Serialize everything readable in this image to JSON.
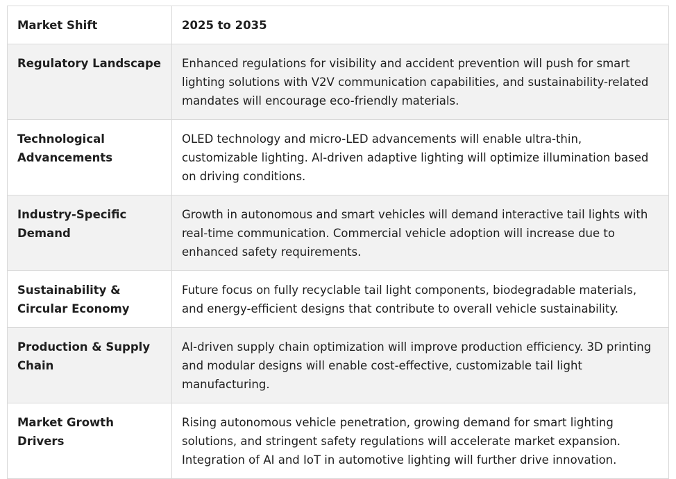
{
  "table": {
    "header": {
      "col1": "Market Shift",
      "col2": "2025 to 2035"
    },
    "rows": [
      {
        "label": "Regulatory Landscape",
        "text": "Enhanced regulations for visibility and accident prevention will push for smart lighting solutions with V2V communication capabilities, and sustainability-related mandates will encourage eco-friendly materials."
      },
      {
        "label": "Technological Advancements",
        "text": "OLED technology and micro-LED advancements will enable ultra-thin, customizable lighting. AI-driven adaptive lighting will optimize illumination based on driving conditions."
      },
      {
        "label": "Industry-Specific Demand",
        "text": "Growth in autonomous and smart vehicles will demand interactive tail lights with real-time communication. Commercial vehicle adoption will increase due to enhanced safety requirements."
      },
      {
        "label": "Sustainability & Circular Economy",
        "text": "Future focus on fully recyclable tail light components, biodegradable materials, and energy-efficient designs that contribute to overall vehicle sustainability."
      },
      {
        "label": "Production & Supply Chain",
        "text": "AI-driven supply chain optimization will improve production efficiency. 3D printing and modular designs will enable cost-effective, customizable tail light manufacturing."
      },
      {
        "label": "Market Growth Drivers",
        "text": "Rising autonomous vehicle penetration, growing demand for smart lighting solutions, and stringent safety regulations will accelerate market expansion. Integration of AI and IoT in automotive lighting will further drive innovation."
      }
    ]
  }
}
